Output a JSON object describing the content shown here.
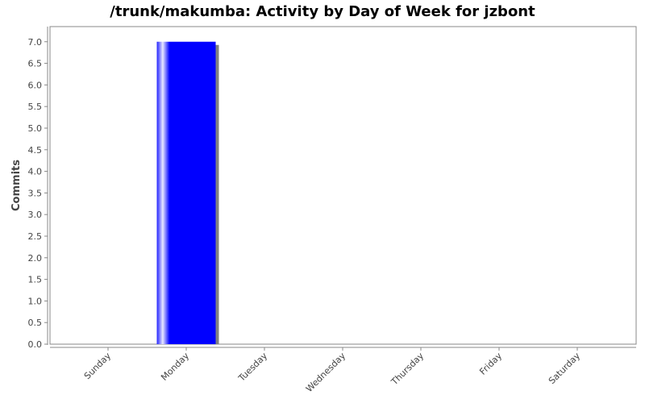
{
  "chart_data": {
    "type": "bar",
    "title": "/trunk/makumba: Activity by Day of Week for jzbont",
    "xlabel": "",
    "ylabel": "Commits",
    "categories": [
      "Sunday",
      "Monday",
      "Tuesday",
      "Wednesday",
      "Thursday",
      "Friday",
      "Saturday"
    ],
    "values": [
      0,
      7,
      0,
      0,
      0,
      0,
      0
    ],
    "ylim": [
      0,
      7.35
    ],
    "yticks": [
      "0.0",
      "0.5",
      "1.0",
      "1.5",
      "2.0",
      "2.5",
      "3.0",
      "3.5",
      "4.0",
      "4.5",
      "5.0",
      "5.5",
      "6.0",
      "6.5",
      "7.0"
    ],
    "grid": false,
    "bar_color": "#0000ff",
    "shadow_color": "#808080"
  }
}
